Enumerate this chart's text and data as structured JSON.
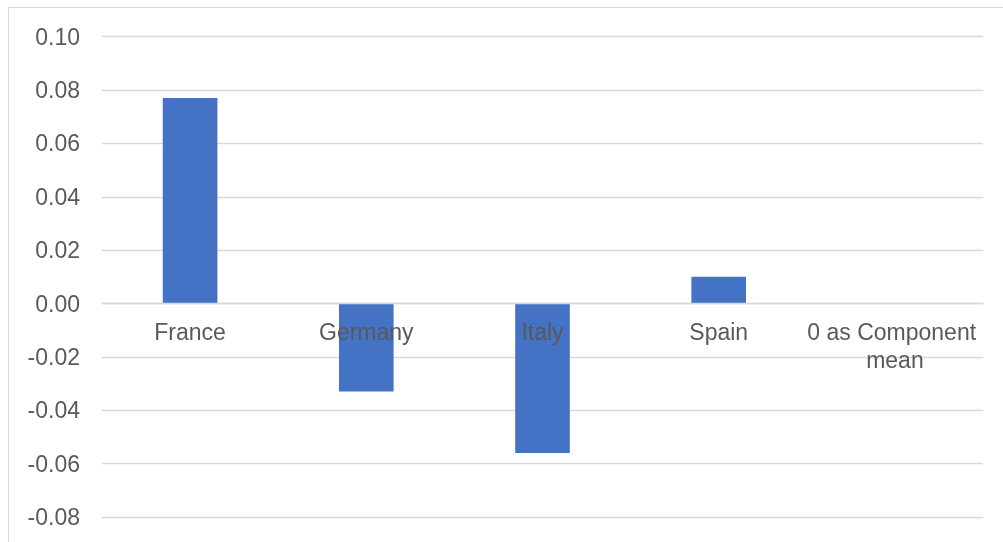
{
  "chart_data": {
    "type": "bar",
    "categories": [
      "France",
      "Germany",
      "Italy",
      "Spain",
      "0 as Component mean"
    ],
    "values": [
      0.077,
      -0.033,
      -0.056,
      0.01,
      0
    ],
    "color": "#4472c4",
    "ylim": [
      -0.08,
      0.1
    ],
    "yticks": [
      -0.08,
      -0.06,
      -0.04,
      -0.02,
      {
        "value": 0,
        "label": "0.00"
      },
      0.02,
      0.04,
      0.06,
      0.08,
      {
        "value": 0.1,
        "label": "0.10"
      }
    ],
    "grid": "y"
  }
}
